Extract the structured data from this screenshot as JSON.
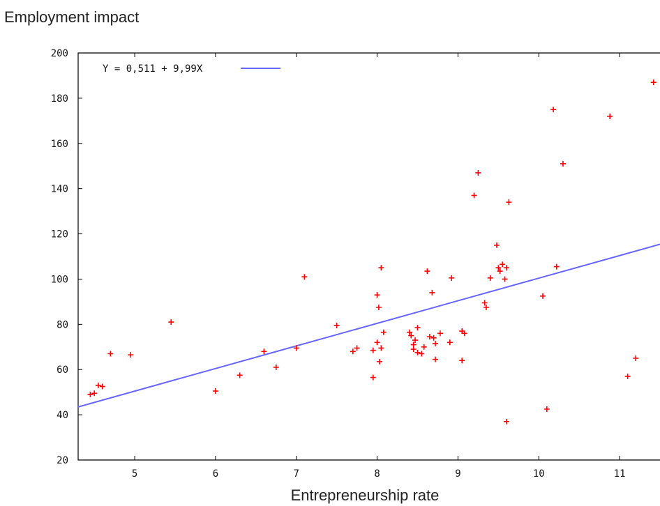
{
  "chart_data": {
    "type": "scatter",
    "title": "",
    "ylabel": "Employment impact",
    "xlabel": "Entrepreneurship rate",
    "xlim": [
      4.3,
      11.5
    ],
    "ylim": [
      20,
      200
    ],
    "xticks": [
      5,
      6,
      7,
      8,
      9,
      10,
      11
    ],
    "yticks": [
      20,
      40,
      60,
      80,
      100,
      120,
      140,
      160,
      180,
      200
    ],
    "grid": false,
    "legend_position": "top-left",
    "colors": {
      "points": "#ff0000",
      "fit_line": "#6666ff"
    },
    "fit_line": {
      "label": "Y = 0,511 + 9,99X",
      "intercept": 0.511,
      "slope": 9.99
    },
    "series": [
      {
        "points": [
          [
            4.45,
            49
          ],
          [
            4.5,
            49.5
          ],
          [
            4.55,
            53
          ],
          [
            4.6,
            52.5
          ],
          [
            4.7,
            67
          ],
          [
            4.95,
            66.5
          ],
          [
            5.45,
            81
          ],
          [
            6.0,
            50.5
          ],
          [
            6.3,
            57.5
          ],
          [
            6.6,
            68
          ],
          [
            6.75,
            61
          ],
          [
            7.0,
            69.5
          ],
          [
            7.1,
            101
          ],
          [
            7.5,
            79.5
          ],
          [
            7.7,
            68
          ],
          [
            7.75,
            69.5
          ],
          [
            7.95,
            68.5
          ],
          [
            7.95,
            56.5
          ],
          [
            8.0,
            93
          ],
          [
            8.0,
            72
          ],
          [
            8.02,
            87.5
          ],
          [
            8.03,
            63.5
          ],
          [
            8.05,
            105
          ],
          [
            8.05,
            69.5
          ],
          [
            8.08,
            76.5
          ],
          [
            8.4,
            76.5
          ],
          [
            8.42,
            75
          ],
          [
            8.45,
            71
          ],
          [
            8.45,
            69
          ],
          [
            8.47,
            73
          ],
          [
            8.5,
            78.5
          ],
          [
            8.5,
            67.5
          ],
          [
            8.55,
            67
          ],
          [
            8.58,
            70
          ],
          [
            8.62,
            103.5
          ],
          [
            8.65,
            74.5
          ],
          [
            8.68,
            94
          ],
          [
            8.7,
            74
          ],
          [
            8.72,
            64.5
          ],
          [
            8.72,
            71.5
          ],
          [
            8.78,
            76
          ],
          [
            8.9,
            72
          ],
          [
            8.92,
            100.5
          ],
          [
            9.05,
            77
          ],
          [
            9.05,
            64
          ],
          [
            9.08,
            76
          ],
          [
            9.2,
            137
          ],
          [
            9.25,
            147
          ],
          [
            9.33,
            89.5
          ],
          [
            9.35,
            87.5
          ],
          [
            9.4,
            100.5
          ],
          [
            9.48,
            115
          ],
          [
            9.5,
            105
          ],
          [
            9.52,
            103.5
          ],
          [
            9.55,
            106.5
          ],
          [
            9.58,
            100
          ],
          [
            9.6,
            105
          ],
          [
            9.6,
            37
          ],
          [
            9.63,
            134
          ],
          [
            10.05,
            92.5
          ],
          [
            10.1,
            42.5
          ],
          [
            10.18,
            175
          ],
          [
            10.22,
            105.5
          ],
          [
            10.3,
            151
          ],
          [
            10.88,
            172
          ],
          [
            11.1,
            57
          ],
          [
            11.2,
            65
          ],
          [
            11.42,
            187
          ]
        ]
      }
    ]
  }
}
